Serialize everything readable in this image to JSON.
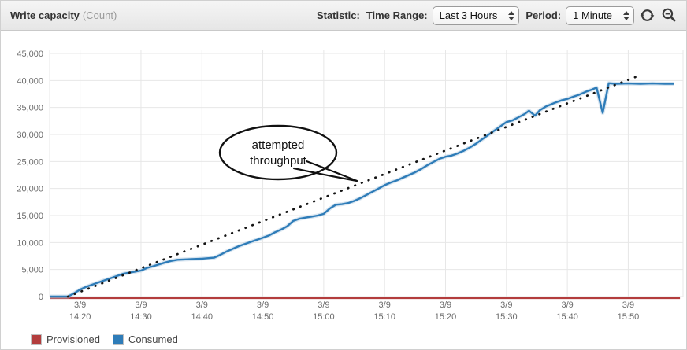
{
  "header": {
    "title": "Write capacity",
    "units": "(Count)",
    "statistic_label": "Statistic:",
    "time_range_label": "Time Range:",
    "time_range_value": "Last 3 Hours",
    "period_label": "Period:",
    "period_value": "1 Minute",
    "icons": [
      "refresh-icon",
      "zoom-out-icon"
    ]
  },
  "annotation": {
    "line1": "attempted",
    "line2": "throughput"
  },
  "legend": {
    "items": [
      {
        "label": "Provisioned",
        "color": "#b33d3d"
      },
      {
        "label": "Consumed",
        "color": "#2e7cb8"
      }
    ]
  },
  "colors": {
    "consumed_line": "#2e7cb8",
    "consumed_halo": "#b9d2e6",
    "provisioned_line": "#b33d3d",
    "attempted_dots": "#141414",
    "grid": "#e7e7e7",
    "axis_text": "#6b6b6b"
  },
  "chart_data": {
    "type": "line",
    "title": "Write capacity (Count)",
    "xlabel": "",
    "ylabel": "Count",
    "ylim": [
      0,
      45000
    ],
    "grid": true,
    "legend_position": "bottom-left",
    "x_axis_note": "minutes after 14:15 on 3/9; plot spans ~14:15-15:57",
    "x_domain_minutes": [
      0,
      104
    ],
    "y_ticks": [
      {
        "value": 0,
        "label": "0"
      },
      {
        "value": 5000,
        "label": "5,000"
      },
      {
        "value": 10000,
        "label": "10,000"
      },
      {
        "value": 15000,
        "label": "15,000"
      },
      {
        "value": 20000,
        "label": "20,000"
      },
      {
        "value": 25000,
        "label": "25,000"
      },
      {
        "value": 30000,
        "label": "30,000"
      },
      {
        "value": 35000,
        "label": "35,000"
      },
      {
        "value": 40000,
        "label": "40,000"
      },
      {
        "value": 45000,
        "label": "45,000"
      }
    ],
    "x_ticks": [
      {
        "t": 5,
        "date": "3/9",
        "time": "14:20"
      },
      {
        "t": 15,
        "date": "3/9",
        "time": "14:30"
      },
      {
        "t": 25,
        "date": "3/9",
        "time": "14:40"
      },
      {
        "t": 35,
        "date": "3/9",
        "time": "14:50"
      },
      {
        "t": 45,
        "date": "3/9",
        "time": "15:00"
      },
      {
        "t": 55,
        "date": "3/9",
        "time": "15:10"
      },
      {
        "t": 65,
        "date": "3/9",
        "time": "15:20"
      },
      {
        "t": 75,
        "date": "3/9",
        "time": "15:30"
      },
      {
        "t": 85,
        "date": "3/9",
        "time": "15:40"
      },
      {
        "t": 95,
        "date": "3/9",
        "time": "15:50"
      }
    ],
    "series": [
      {
        "name": "Provisioned",
        "color": "#b33d3d",
        "style": "solid",
        "points": [
          [
            0,
            0
          ],
          [
            103.5,
            0
          ]
        ]
      },
      {
        "name": "Consumed",
        "color": "#2e7cb8",
        "style": "solid",
        "points": [
          [
            0,
            0
          ],
          [
            3,
            0
          ],
          [
            4,
            600
          ],
          [
            5,
            1300
          ],
          [
            6,
            1800
          ],
          [
            8,
            2600
          ],
          [
            10,
            3400
          ],
          [
            12,
            4200
          ],
          [
            14,
            4600
          ],
          [
            15,
            4800
          ],
          [
            16,
            5300
          ],
          [
            17,
            5600
          ],
          [
            19,
            6300
          ],
          [
            20,
            6600
          ],
          [
            21,
            6800
          ],
          [
            23,
            6900
          ],
          [
            25,
            7000
          ],
          [
            27,
            7200
          ],
          [
            28,
            7700
          ],
          [
            29,
            8300
          ],
          [
            30,
            8800
          ],
          [
            31,
            9300
          ],
          [
            33,
            10100
          ],
          [
            35,
            10900
          ],
          [
            36,
            11300
          ],
          [
            37,
            11900
          ],
          [
            38,
            12400
          ],
          [
            39,
            13000
          ],
          [
            40,
            14000
          ],
          [
            41,
            14400
          ],
          [
            42,
            14600
          ],
          [
            43,
            14800
          ],
          [
            44,
            15000
          ],
          [
            45,
            15300
          ],
          [
            46,
            16300
          ],
          [
            47,
            17000
          ],
          [
            48,
            17100
          ],
          [
            49,
            17300
          ],
          [
            50,
            17700
          ],
          [
            51,
            18200
          ],
          [
            52,
            18800
          ],
          [
            53,
            19400
          ],
          [
            54,
            20000
          ],
          [
            55,
            20600
          ],
          [
            56,
            21100
          ],
          [
            57,
            21500
          ],
          [
            58,
            22000
          ],
          [
            59,
            22500
          ],
          [
            60,
            23000
          ],
          [
            61,
            23600
          ],
          [
            62,
            24300
          ],
          [
            63,
            24900
          ],
          [
            64,
            25500
          ],
          [
            65,
            25900
          ],
          [
            66,
            26100
          ],
          [
            67,
            26500
          ],
          [
            68,
            27000
          ],
          [
            69,
            27600
          ],
          [
            70,
            28300
          ],
          [
            71,
            29100
          ],
          [
            72,
            29900
          ],
          [
            73,
            30700
          ],
          [
            74,
            31500
          ],
          [
            75,
            32300
          ],
          [
            76,
            32600
          ],
          [
            77,
            33200
          ],
          [
            78,
            33800
          ],
          [
            78.7,
            34400
          ],
          [
            79.7,
            33500
          ],
          [
            80.5,
            34500
          ],
          [
            81.5,
            35200
          ],
          [
            83,
            35900
          ],
          [
            84,
            36300
          ],
          [
            85,
            36600
          ],
          [
            86,
            37000
          ],
          [
            87,
            37400
          ],
          [
            88,
            37900
          ],
          [
            89,
            38300
          ],
          [
            89.8,
            38700
          ],
          [
            90.8,
            34000
          ],
          [
            91.8,
            39500
          ],
          [
            93,
            39400
          ],
          [
            95,
            39450
          ],
          [
            97,
            39400
          ],
          [
            99,
            39450
          ],
          [
            101,
            39400
          ],
          [
            102.5,
            39400
          ]
        ]
      },
      {
        "name": "attempted throughput",
        "color": "#141414",
        "style": "dotted",
        "points": [
          [
            3,
            0
          ],
          [
            97,
            41000
          ]
        ]
      }
    ]
  }
}
